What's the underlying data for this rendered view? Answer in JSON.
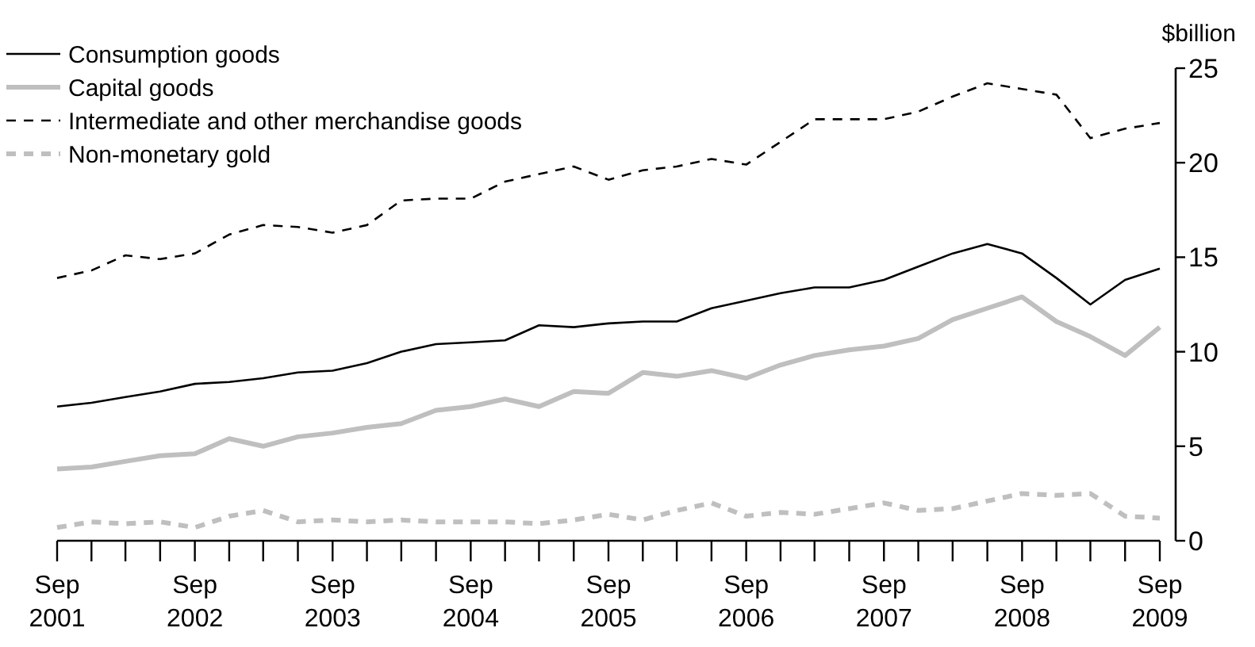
{
  "chart_data": {
    "type": "line",
    "ylabel": "$billion",
    "x": [
      "2001-09",
      "2001-12",
      "2002-03",
      "2002-06",
      "2002-09",
      "2002-12",
      "2003-03",
      "2003-06",
      "2003-09",
      "2003-12",
      "2004-03",
      "2004-06",
      "2004-09",
      "2004-12",
      "2005-03",
      "2005-06",
      "2005-09",
      "2005-12",
      "2006-03",
      "2006-06",
      "2006-09",
      "2006-12",
      "2007-03",
      "2007-06",
      "2007-09",
      "2007-12",
      "2008-03",
      "2008-06",
      "2008-09",
      "2008-12",
      "2009-03",
      "2009-06",
      "2009-09"
    ],
    "series": [
      {
        "name": "Consumption goods",
        "color": "#000000",
        "line_style": "solid",
        "values": [
          7.1,
          7.3,
          7.6,
          7.9,
          8.3,
          8.4,
          8.6,
          8.9,
          9.0,
          9.4,
          10.0,
          10.4,
          10.5,
          10.6,
          11.4,
          11.3,
          11.5,
          11.6,
          11.6,
          12.3,
          12.7,
          13.1,
          13.4,
          13.4,
          13.8,
          14.5,
          15.2,
          15.7,
          15.2,
          13.9,
          12.5,
          13.8,
          14.4
        ]
      },
      {
        "name": "Capital goods",
        "color": "#bfbfbf",
        "line_style": "solid",
        "values": [
          3.8,
          3.9,
          4.2,
          4.5,
          4.6,
          5.4,
          5.0,
          5.5,
          5.7,
          6.0,
          6.2,
          6.9,
          7.1,
          7.5,
          7.1,
          7.9,
          7.8,
          8.9,
          8.7,
          9.0,
          8.6,
          9.3,
          9.8,
          10.1,
          10.3,
          10.7,
          11.7,
          12.3,
          12.9,
          11.6,
          10.8,
          9.8,
          11.3
        ]
      },
      {
        "name": "Intermediate and other merchandise goods",
        "color": "#000000",
        "line_style": "dashed",
        "values": [
          13.9,
          14.3,
          15.1,
          14.9,
          15.2,
          16.2,
          16.7,
          16.6,
          16.3,
          16.7,
          18.0,
          18.1,
          18.1,
          19.0,
          19.4,
          19.8,
          19.1,
          19.6,
          19.8,
          20.2,
          19.9,
          21.1,
          22.3,
          22.3,
          22.3,
          22.7,
          23.5,
          24.2,
          23.9,
          23.6,
          21.3,
          21.8,
          22.1
        ]
      },
      {
        "name": "Non-monetary gold",
        "color": "#bfbfbf",
        "line_style": "dashed",
        "values": [
          0.7,
          1.0,
          0.9,
          1.0,
          0.7,
          1.3,
          1.6,
          1.0,
          1.1,
          1.0,
          1.1,
          1.0,
          1.0,
          1.0,
          0.9,
          1.1,
          1.4,
          1.1,
          1.6,
          2.0,
          1.3,
          1.5,
          1.4,
          1.7,
          2.0,
          1.6,
          1.7,
          2.1,
          2.5,
          2.4,
          2.5,
          1.3,
          1.2
        ]
      }
    ],
    "xlim": [
      "2001-09",
      "2009-09"
    ],
    "xticks": [
      {
        "value": "2001-09",
        "label": "Sep\n2001"
      },
      {
        "value": "2001-12",
        "label": null
      },
      {
        "value": "2002-03",
        "label": null
      },
      {
        "value": "2002-06",
        "label": null
      },
      {
        "value": "2002-09",
        "label": "Sep\n2002"
      },
      {
        "value": "2002-12",
        "label": null
      },
      {
        "value": "2003-03",
        "label": null
      },
      {
        "value": "2003-06",
        "label": null
      },
      {
        "value": "2003-09",
        "label": "Sep\n2003"
      },
      {
        "value": "2003-12",
        "label": null
      },
      {
        "value": "2004-03",
        "label": null
      },
      {
        "value": "2004-06",
        "label": null
      },
      {
        "value": "2004-09",
        "label": "Sep\n2004"
      },
      {
        "value": "2004-12",
        "label": null
      },
      {
        "value": "2005-03",
        "label": null
      },
      {
        "value": "2005-06",
        "label": null
      },
      {
        "value": "2005-09",
        "label": "Sep\n2005"
      },
      {
        "value": "2005-12",
        "label": null
      },
      {
        "value": "2006-03",
        "label": null
      },
      {
        "value": "2006-06",
        "label": null
      },
      {
        "value": "2006-09",
        "label": "Sep\n2006"
      },
      {
        "value": "2006-12",
        "label": null
      },
      {
        "value": "2007-03",
        "label": null
      },
      {
        "value": "2007-06",
        "label": null
      },
      {
        "value": "2007-09",
        "label": "Sep\n2007"
      },
      {
        "value": "2007-12",
        "label": null
      },
      {
        "value": "2008-03",
        "label": null
      },
      {
        "value": "2008-06",
        "label": null
      },
      {
        "value": "2008-09",
        "label": "Sep\n2008"
      },
      {
        "value": "2008-12",
        "label": null
      },
      {
        "value": "2009-03",
        "label": null
      },
      {
        "value": "2009-06",
        "label": null
      },
      {
        "value": "2009-09",
        "label": "Sep\n2009"
      }
    ],
    "ylim": [
      0,
      25
    ],
    "yticks": [
      0,
      5,
      10,
      15,
      20,
      25
    ],
    "grid": false,
    "legend": "top left"
  }
}
